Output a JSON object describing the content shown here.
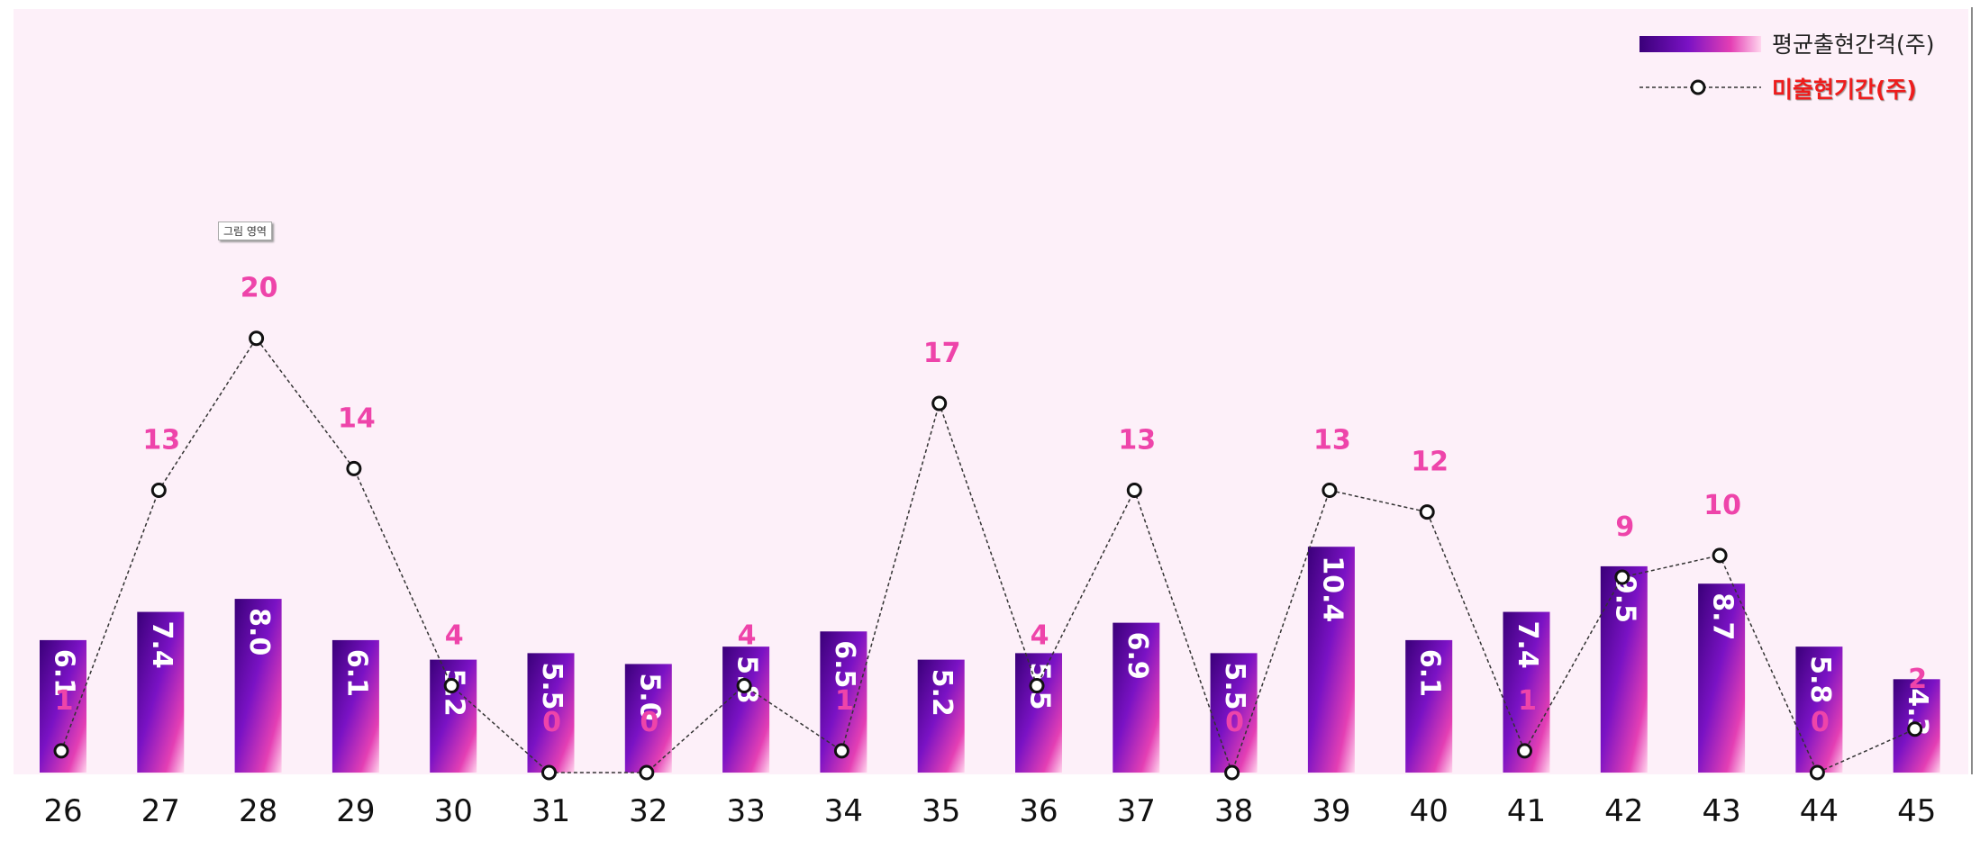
{
  "chart_data": {
    "type": "bar",
    "categories": [
      "26",
      "27",
      "28",
      "29",
      "30",
      "31",
      "32",
      "33",
      "34",
      "35",
      "36",
      "37",
      "38",
      "39",
      "40",
      "41",
      "42",
      "43",
      "44",
      "45"
    ],
    "series": [
      {
        "name": "평균출현간격(주)",
        "type": "bar",
        "values": [
          6.1,
          7.4,
          8.0,
          6.1,
          5.2,
          5.5,
          5.0,
          5.8,
          6.5,
          5.2,
          5.5,
          6.9,
          5.5,
          10.4,
          6.1,
          7.4,
          9.5,
          8.7,
          5.8,
          4.3
        ],
        "labels": [
          "6.1",
          "7.4",
          "8.0",
          "6.1",
          "5.2",
          "5.5",
          "5.0",
          "5.8",
          "6.5",
          "5.2",
          "5.5",
          "6.9",
          "5.5",
          "10.4",
          "6.1",
          "7.4",
          "9.5",
          "8.7",
          "5.8",
          "4.3"
        ]
      },
      {
        "name": "미출현기간(주)",
        "type": "line",
        "values": [
          1,
          13,
          20,
          14,
          4,
          0,
          0,
          4,
          1,
          17,
          4,
          13,
          0,
          13,
          12,
          1,
          9,
          10,
          0,
          2
        ],
        "labels": [
          "1",
          "13",
          "20",
          "14",
          "4",
          "0",
          "0",
          "4",
          "1",
          "17",
          "4",
          "13",
          "0",
          "13",
          "12",
          "1",
          "9",
          "10",
          "0",
          "2"
        ]
      }
    ],
    "ylim": [
      0,
      35
    ],
    "legend_position": "top-right",
    "grid": false
  },
  "overlay": {
    "tooltip_text": "그림 영역"
  },
  "colors": {
    "plot_background": "#fdf0f9",
    "bar_top": "#3a0079",
    "bar_mid": "#7a12c4",
    "bar_bottom": "#ffd6ee",
    "bar_bottom_hot": "#e43fb4",
    "bar_label": "#ffffff",
    "line_label": "#ee44aa",
    "line_stroke": "#333333",
    "legend_line_text": "#ee1c1c",
    "axis_label": "#111111"
  }
}
